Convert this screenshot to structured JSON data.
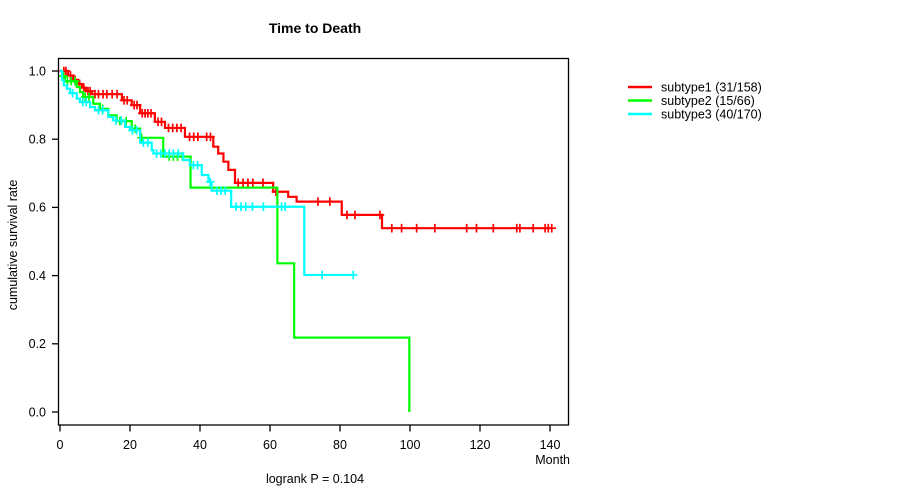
{
  "title": "Time to Death",
  "chart_data": {
    "type": "line",
    "subtype": "kaplan-meier-survival-step",
    "title": "Time to Death",
    "xlabel": "Month",
    "ylabel": "cumulative survival rate",
    "annotation": "logrank P = 0.104",
    "xlim": [
      0,
      145
    ],
    "ylim": [
      0.0,
      1.0
    ],
    "x_ticks": [
      0,
      20,
      40,
      60,
      80,
      100,
      120,
      140
    ],
    "y_ticks": [
      1.0,
      0.8,
      0.6,
      0.4,
      0.2,
      0.0
    ],
    "grid": false,
    "legend_position": "right-outside",
    "series": [
      {
        "name": "subtype1",
        "label": "subtype1 (31/158)",
        "color": "#ff0000",
        "events_total": "31/158",
        "end_time": 140.5,
        "steps": [
          [
            0,
            1.0
          ],
          [
            2.3,
            0.987
          ],
          [
            3.7,
            0.974
          ],
          [
            5.1,
            0.962
          ],
          [
            6.3,
            0.951
          ],
          [
            7.4,
            0.941
          ],
          [
            9.1,
            0.932
          ],
          [
            17.7,
            0.914
          ],
          [
            20.5,
            0.9
          ],
          [
            22.9,
            0.876
          ],
          [
            27.1,
            0.851
          ],
          [
            30,
            0.833
          ],
          [
            35.7,
            0.807
          ],
          [
            43.8,
            0.778
          ],
          [
            45.2,
            0.758
          ],
          [
            46.7,
            0.734
          ],
          [
            48.1,
            0.71
          ],
          [
            50,
            0.672
          ],
          [
            60.9,
            0.646
          ],
          [
            65.2,
            0.631
          ],
          [
            67.6,
            0.617
          ],
          [
            80.5,
            0.578
          ],
          [
            92,
            0.539
          ]
        ],
        "censors": [
          [
            1.1,
            1.0
          ],
          [
            1.7,
            1.0
          ],
          [
            3.0,
            0.987
          ],
          [
            4.3,
            0.974
          ],
          [
            5.6,
            0.962
          ],
          [
            6.8,
            0.951
          ],
          [
            8.0,
            0.941
          ],
          [
            8.6,
            0.941
          ],
          [
            10,
            0.932
          ],
          [
            11,
            0.932
          ],
          [
            12.3,
            0.932
          ],
          [
            13.4,
            0.932
          ],
          [
            14.9,
            0.932
          ],
          [
            16.3,
            0.932
          ],
          [
            18.3,
            0.914
          ],
          [
            19.2,
            0.914
          ],
          [
            21.2,
            0.9
          ],
          [
            22.0,
            0.9
          ],
          [
            23.5,
            0.876
          ],
          [
            24.3,
            0.876
          ],
          [
            25.1,
            0.876
          ],
          [
            26,
            0.876
          ],
          [
            28,
            0.851
          ],
          [
            29,
            0.851
          ],
          [
            31,
            0.833
          ],
          [
            32.2,
            0.833
          ],
          [
            33.4,
            0.833
          ],
          [
            34.6,
            0.833
          ],
          [
            37,
            0.807
          ],
          [
            38.2,
            0.807
          ],
          [
            39.4,
            0.807
          ],
          [
            41.9,
            0.807
          ],
          [
            43,
            0.807
          ],
          [
            50.9,
            0.672
          ],
          [
            52.3,
            0.672
          ],
          [
            53.7,
            0.672
          ],
          [
            55.1,
            0.672
          ],
          [
            58,
            0.672
          ],
          [
            61.7,
            0.646
          ],
          [
            73.7,
            0.617
          ],
          [
            77.1,
            0.617
          ],
          [
            82,
            0.578
          ],
          [
            84.3,
            0.578
          ],
          [
            91.4,
            0.578
          ],
          [
            94.8,
            0.539
          ],
          [
            97.6,
            0.539
          ],
          [
            101.9,
            0.539
          ],
          [
            107.1,
            0.539
          ],
          [
            116.2,
            0.539
          ],
          [
            119,
            0.539
          ],
          [
            123.8,
            0.539
          ],
          [
            130.5,
            0.539
          ],
          [
            131.4,
            0.539
          ],
          [
            135.2,
            0.539
          ],
          [
            138.6,
            0.539
          ],
          [
            139.5,
            0.539
          ],
          [
            140.5,
            0.539
          ]
        ]
      },
      {
        "name": "subtype2",
        "label": "subtype2 (15/66)",
        "color": "#00ff00",
        "events_total": "15/66",
        "end_time": 99.8,
        "steps": [
          [
            0,
            1.0
          ],
          [
            0.6,
            0.985
          ],
          [
            1.4,
            0.97
          ],
          [
            4.8,
            0.953
          ],
          [
            5.7,
            0.938
          ],
          [
            6.6,
            0.924
          ],
          [
            9.5,
            0.904
          ],
          [
            11.4,
            0.889
          ],
          [
            13.8,
            0.87
          ],
          [
            16.2,
            0.853
          ],
          [
            20.5,
            0.831
          ],
          [
            22.9,
            0.804
          ],
          [
            29.5,
            0.749
          ],
          [
            37.3,
            0.658
          ],
          [
            62.1,
            0.436
          ],
          [
            66.9,
            0.218
          ],
          [
            99.8,
            0.0
          ]
        ],
        "censors": [
          [
            1.0,
            0.985
          ],
          [
            2.1,
            0.97
          ],
          [
            3.2,
            0.97
          ],
          [
            4.3,
            0.97
          ],
          [
            7.2,
            0.924
          ],
          [
            8.3,
            0.924
          ],
          [
            12.2,
            0.889
          ],
          [
            17.1,
            0.853
          ],
          [
            18.9,
            0.853
          ],
          [
            21.5,
            0.831
          ],
          [
            23.3,
            0.804
          ],
          [
            31.2,
            0.749
          ],
          [
            32.4,
            0.749
          ],
          [
            33.6,
            0.749
          ],
          [
            35,
            0.749
          ]
        ]
      },
      {
        "name": "subtype3",
        "label": "subtype3 (40/170)",
        "color": "#00ffff",
        "events_total": "40/170",
        "end_time": 83.8,
        "steps": [
          [
            0,
            1.0
          ],
          [
            0.6,
            0.974
          ],
          [
            1.1,
            0.958
          ],
          [
            2.0,
            0.948
          ],
          [
            2.9,
            0.935
          ],
          [
            4.8,
            0.919
          ],
          [
            5.7,
            0.909
          ],
          [
            8.6,
            0.894
          ],
          [
            10,
            0.885
          ],
          [
            13.8,
            0.865
          ],
          [
            15.2,
            0.855
          ],
          [
            18.6,
            0.836
          ],
          [
            20,
            0.826
          ],
          [
            22.9,
            0.79
          ],
          [
            26.2,
            0.768
          ],
          [
            26.7,
            0.758
          ],
          [
            35.2,
            0.739
          ],
          [
            37.1,
            0.724
          ],
          [
            40.5,
            0.695
          ],
          [
            42.4,
            0.675
          ],
          [
            43.3,
            0.649
          ],
          [
            48.9,
            0.602
          ],
          [
            69.8,
            0.402
          ]
        ],
        "censors": [
          [
            3.6,
            0.935
          ],
          [
            6.5,
            0.909
          ],
          [
            7.5,
            0.909
          ],
          [
            11,
            0.885
          ],
          [
            12.2,
            0.885
          ],
          [
            16,
            0.855
          ],
          [
            17.5,
            0.855
          ],
          [
            20.7,
            0.826
          ],
          [
            21.9,
            0.826
          ],
          [
            23.8,
            0.79
          ],
          [
            25.1,
            0.79
          ],
          [
            27.6,
            0.758
          ],
          [
            28.8,
            0.758
          ],
          [
            30,
            0.758
          ],
          [
            31.2,
            0.758
          ],
          [
            32.4,
            0.758
          ],
          [
            33.8,
            0.758
          ],
          [
            38.1,
            0.724
          ],
          [
            39.3,
            0.724
          ],
          [
            42.9,
            0.675
          ],
          [
            44.8,
            0.649
          ],
          [
            46,
            0.649
          ],
          [
            47.2,
            0.649
          ],
          [
            50.3,
            0.602
          ],
          [
            51.7,
            0.602
          ],
          [
            53.1,
            0.602
          ],
          [
            55,
            0.602
          ],
          [
            58.1,
            0.602
          ],
          [
            63.3,
            0.602
          ],
          [
            64.3,
            0.602
          ],
          [
            74.9,
            0.402
          ],
          [
            83.8,
            0.402
          ]
        ]
      }
    ]
  }
}
